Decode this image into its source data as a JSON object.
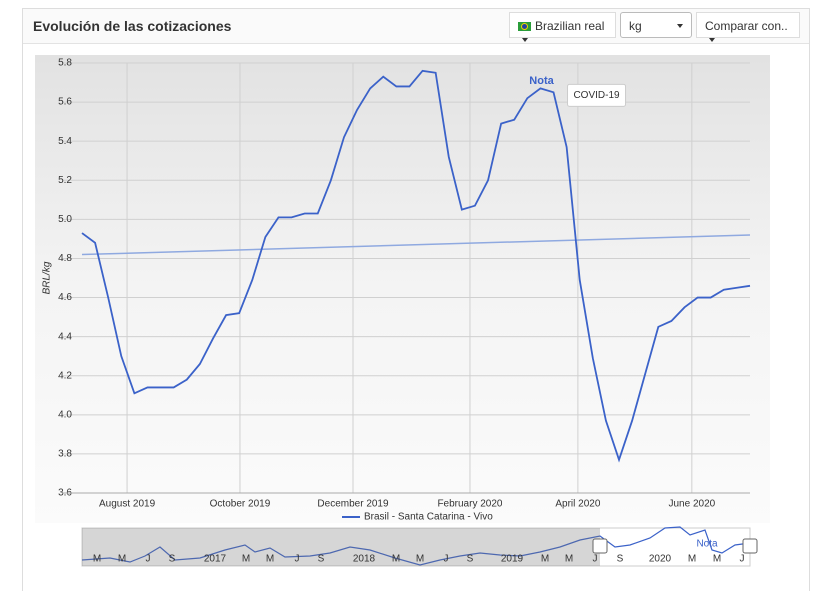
{
  "header": {
    "title": "Evolución de las cotizaciones",
    "currency": "Brazilian real",
    "unit": "kg",
    "compare": "Comparar con.."
  },
  "chart_data": {
    "type": "line",
    "y_label": "BRL/kg",
    "series": [
      {
        "name": "Brasil - Santa Catarina - Vivo",
        "color": "#3b62c9",
        "values": [
          4.93,
          4.88,
          4.6,
          4.3,
          4.11,
          4.14,
          4.14,
          4.14,
          4.18,
          4.26,
          4.39,
          4.51,
          4.52,
          4.69,
          4.91,
          5.01,
          5.01,
          5.03,
          5.03,
          5.2,
          5.42,
          5.56,
          5.67,
          5.73,
          5.68,
          5.68,
          5.76,
          5.75,
          5.32,
          5.05,
          5.07,
          5.2,
          5.49,
          5.51,
          5.62,
          5.67,
          5.65,
          5.37,
          4.69,
          4.29,
          3.97,
          3.77,
          3.97,
          4.21,
          4.45,
          4.48,
          4.55,
          4.6,
          4.6,
          4.64,
          4.65,
          4.66
        ]
      }
    ],
    "trendline": {
      "color": "#8fa9e0",
      "values": [
        4.82,
        4.92
      ]
    },
    "xlim": [
      0,
      51
    ],
    "xticks": [
      {
        "value": 3.44,
        "label": "August 2019"
      },
      {
        "value": 12.06,
        "label": "October 2019"
      },
      {
        "value": 20.69,
        "label": "December 2019"
      },
      {
        "value": 29.62,
        "label": "February 2020"
      },
      {
        "value": 37.86,
        "label": "April 2020"
      },
      {
        "value": 46.56,
        "label": "June 2020"
      }
    ],
    "ylim": [
      3.6,
      5.8
    ],
    "yticks": [
      3.6,
      3.8,
      {
        "value": 4,
        "label": "4.0"
      },
      4.2,
      4.4,
      4.6,
      4.8,
      {
        "value": 5,
        "label": "5.0"
      },
      5.2,
      5.4,
      5.6,
      5.8
    ],
    "grid": true,
    "annotation": {
      "index": 36,
      "title": "Nota",
      "text": "COVID-19"
    },
    "navigator": {
      "labels": [
        "M",
        "M",
        "J",
        "S",
        "2017",
        "M",
        "M",
        "J",
        "S",
        "2018",
        "M",
        "M",
        "J",
        "S",
        "2019",
        "M",
        "M",
        "J",
        "S",
        "2020",
        "M",
        "M",
        "J"
      ],
      "note": "Nota"
    }
  }
}
